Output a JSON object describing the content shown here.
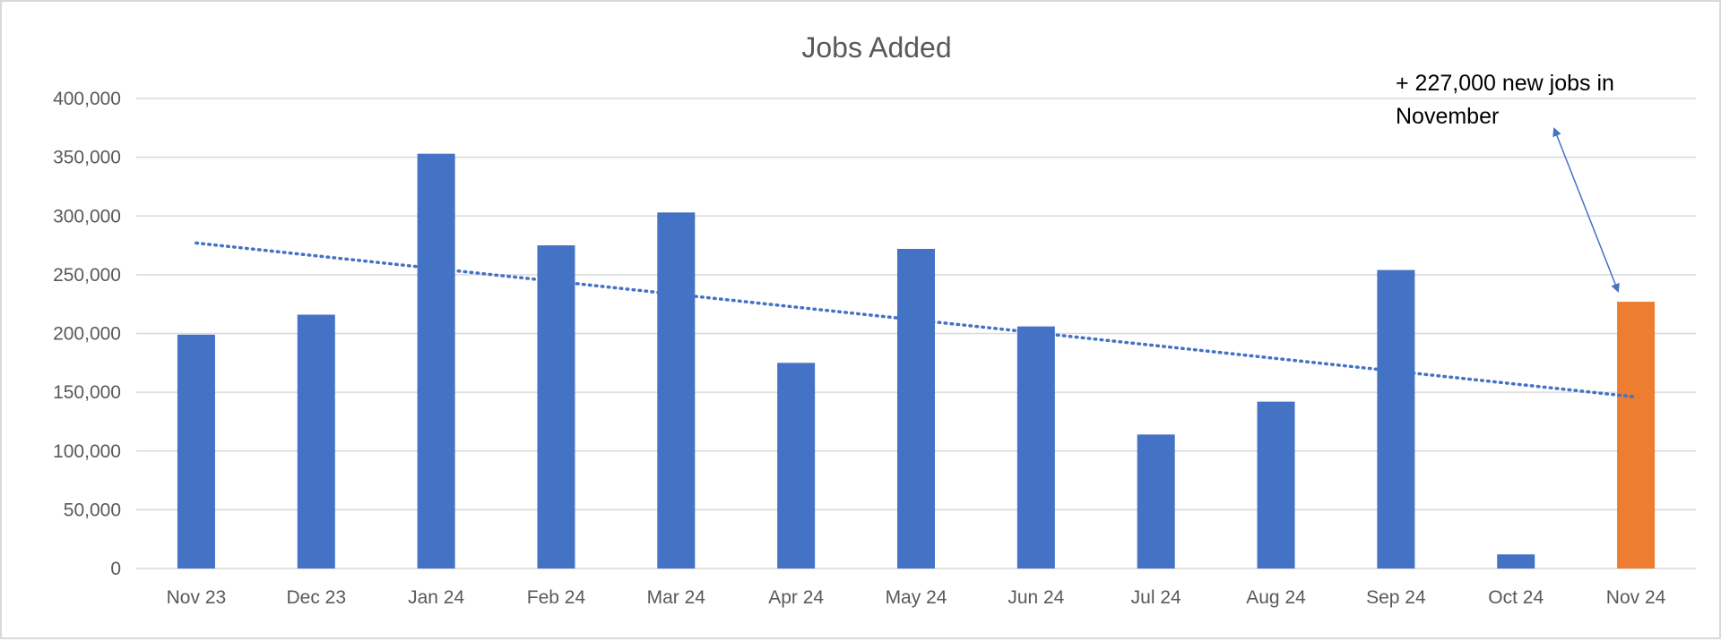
{
  "chart_data": {
    "type": "bar",
    "title": "Jobs Added",
    "xlabel": "",
    "ylabel": "",
    "categories": [
      "Nov 23",
      "Dec 23",
      "Jan 24",
      "Feb 24",
      "Mar 24",
      "Apr 24",
      "May 24",
      "Jun 24",
      "Jul 24",
      "Aug 24",
      "Sep 24",
      "Oct 24",
      "Nov 24"
    ],
    "values": [
      199000,
      216000,
      353000,
      275000,
      303000,
      175000,
      272000,
      206000,
      114000,
      142000,
      254000,
      12000,
      227000
    ],
    "highlight_index": 12,
    "ylim": [
      0,
      400000
    ],
    "ytick_values": [
      0,
      50000,
      100000,
      150000,
      200000,
      250000,
      300000,
      350000,
      400000
    ],
    "ytick_labels": [
      "0",
      "50,000",
      "100,000",
      "150,000",
      "200,000",
      "250,000",
      "300,000",
      "350,000",
      "400,000"
    ],
    "grid": true,
    "trendline": {
      "style": "dotted",
      "start": 277000,
      "end": 146000
    },
    "annotation": {
      "lines": [
        "+ 227,000 new jobs in",
        "November"
      ],
      "target_index": 12
    },
    "colors": {
      "bar": "#4472c4",
      "highlight": "#ed7d31",
      "trendline": "#4472c4",
      "arrow": "#4472c4",
      "grid": "#d9d9d9",
      "axis_text": "#595959",
      "frame": "#d9d9d9"
    }
  }
}
